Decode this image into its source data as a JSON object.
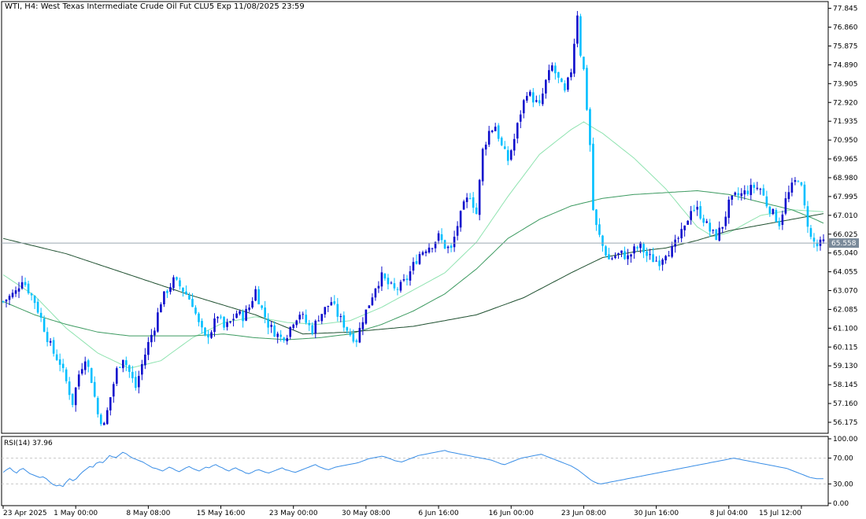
{
  "chart_data": {
    "type": "candlestick",
    "title": "WTI, H4:  West Texas Intermediate Crude Oil Fut CLU5 Exp 11/08/2025 23:59",
    "symbol": "WTI",
    "timeframe": "H4",
    "colors": {
      "bull": "#0d0dcc",
      "bear": "#00bfff",
      "ma_fast": "#8fe3b0",
      "ma_mid": "#3c9a60",
      "ma_slow": "#1f5030",
      "rsi_line": "#3a8ee6",
      "last_price_line": "#9aa6b0",
      "last_price_tag_bg": "#7a8a9a",
      "grid_levels": "#c8c8c8"
    },
    "price_axis": {
      "ylim": [
        55.6,
        78.2
      ],
      "ticks": [
        "77.845",
        "76.860",
        "75.875",
        "74.890",
        "73.905",
        "72.920",
        "71.935",
        "70.950",
        "69.965",
        "68.980",
        "67.995",
        "67.010",
        "66.025",
        "65.040",
        "64.055",
        "63.070",
        "62.085",
        "61.100",
        "60.115",
        "59.130",
        "58.145",
        "57.160",
        "56.175"
      ]
    },
    "last_price": "65.558",
    "time_axis": {
      "labels": [
        "23 Apr 2025",
        "1 May 00:00",
        "8 May 08:00",
        "15 May 16:00",
        "23 May 00:00",
        "30 May 08:00",
        "6 Jun 16:00",
        "16 Jun 00:00",
        "23 Jun 08:00",
        "30 Jun 16:00",
        "8 Jul 04:00",
        "15 Jul 12:00"
      ],
      "label_bar_index": [
        0,
        23,
        46,
        69,
        92,
        115,
        138,
        161,
        184,
        207,
        230,
        253
      ]
    },
    "anchors": [
      [
        0,
        62.5
      ],
      [
        4,
        63.0
      ],
      [
        6,
        63.7
      ],
      [
        8,
        63.1
      ],
      [
        10,
        62.5
      ],
      [
        12,
        61.6
      ],
      [
        14,
        60.6
      ],
      [
        16,
        59.8
      ],
      [
        18,
        59.3
      ],
      [
        20,
        58.3
      ],
      [
        22,
        57.2
      ],
      [
        24,
        58.7
      ],
      [
        26,
        59.6
      ],
      [
        28,
        58.4
      ],
      [
        30,
        56.6
      ],
      [
        32,
        56.0
      ],
      [
        34,
        57.5
      ],
      [
        36,
        58.9
      ],
      [
        38,
        59.6
      ],
      [
        40,
        58.8
      ],
      [
        42,
        58.0
      ],
      [
        44,
        59.2
      ],
      [
        46,
        60.3
      ],
      [
        48,
        61.2
      ],
      [
        50,
        62.5
      ],
      [
        52,
        63.1
      ],
      [
        54,
        63.6
      ],
      [
        56,
        63.3
      ],
      [
        58,
        62.9
      ],
      [
        60,
        62.4
      ],
      [
        62,
        61.3
      ],
      [
        64,
        60.6
      ],
      [
        66,
        61.0
      ],
      [
        68,
        61.8
      ],
      [
        70,
        61.1
      ],
      [
        72,
        61.4
      ],
      [
        74,
        61.9
      ],
      [
        76,
        61.7
      ],
      [
        78,
        62.2
      ],
      [
        80,
        63.1
      ],
      [
        82,
        62.1
      ],
      [
        84,
        61.3
      ],
      [
        86,
        60.9
      ],
      [
        88,
        60.6
      ],
      [
        90,
        60.8
      ],
      [
        92,
        61.5
      ],
      [
        94,
        61.9
      ],
      [
        96,
        61.4
      ],
      [
        98,
        61.0
      ],
      [
        100,
        61.7
      ],
      [
        102,
        62.1
      ],
      [
        104,
        62.5
      ],
      [
        106,
        61.8
      ],
      [
        108,
        61.3
      ],
      [
        110,
        60.8
      ],
      [
        112,
        60.5
      ],
      [
        114,
        61.6
      ],
      [
        116,
        62.4
      ],
      [
        118,
        63.3
      ],
      [
        120,
        63.8
      ],
      [
        122,
        63.4
      ],
      [
        124,
        63.1
      ],
      [
        126,
        63.3
      ],
      [
        128,
        63.7
      ],
      [
        130,
        64.4
      ],
      [
        132,
        65.0
      ],
      [
        134,
        65.3
      ],
      [
        136,
        65.5
      ],
      [
        138,
        65.9
      ],
      [
        140,
        65.4
      ],
      [
        142,
        65.2
      ],
      [
        144,
        66.5
      ],
      [
        146,
        67.5
      ],
      [
        148,
        68.1
      ],
      [
        150,
        67.1
      ],
      [
        152,
        70.4
      ],
      [
        154,
        71.4
      ],
      [
        156,
        71.7
      ],
      [
        158,
        70.6
      ],
      [
        160,
        69.9
      ],
      [
        162,
        71.0
      ],
      [
        164,
        72.4
      ],
      [
        166,
        73.5
      ],
      [
        168,
        73.1
      ],
      [
        170,
        72.7
      ],
      [
        172,
        74.0
      ],
      [
        174,
        74.8
      ],
      [
        176,
        74.1
      ],
      [
        178,
        73.4
      ],
      [
        180,
        74.6
      ],
      [
        182,
        77.6
      ],
      [
        183,
        75.5
      ],
      [
        184,
        74.6
      ],
      [
        186,
        70.7
      ],
      [
        187,
        67.3
      ],
      [
        188,
        66.4
      ],
      [
        190,
        65.4
      ],
      [
        192,
        64.7
      ],
      [
        194,
        64.9
      ],
      [
        196,
        65.0
      ],
      [
        198,
        64.8
      ],
      [
        200,
        65.2
      ],
      [
        202,
        65.4
      ],
      [
        204,
        64.9
      ],
      [
        206,
        64.7
      ],
      [
        208,
        64.6
      ],
      [
        210,
        65.1
      ],
      [
        212,
        65.2
      ],
      [
        214,
        65.8
      ],
      [
        216,
        66.3
      ],
      [
        218,
        67.4
      ],
      [
        220,
        67.3
      ],
      [
        222,
        66.8
      ],
      [
        224,
        66.2
      ],
      [
        226,
        65.9
      ],
      [
        228,
        66.5
      ],
      [
        230,
        67.6
      ],
      [
        232,
        68.0
      ],
      [
        234,
        68.1
      ],
      [
        236,
        68.3
      ],
      [
        238,
        68.5
      ],
      [
        240,
        68.4
      ],
      [
        242,
        67.6
      ],
      [
        244,
        67.1
      ],
      [
        246,
        66.6
      ],
      [
        248,
        67.8
      ],
      [
        250,
        68.5
      ],
      [
        252,
        69.0
      ],
      [
        253,
        68.4
      ],
      [
        254,
        67.4
      ],
      [
        255,
        66.6
      ],
      [
        256,
        65.8
      ],
      [
        258,
        65.4
      ],
      [
        260,
        65.6
      ]
    ],
    "moving_averages": [
      {
        "points": [
          [
            0,
            63.9
          ],
          [
            10,
            62.8
          ],
          [
            20,
            61.1
          ],
          [
            30,
            59.8
          ],
          [
            40,
            59.0
          ],
          [
            50,
            59.4
          ],
          [
            60,
            60.6
          ],
          [
            70,
            61.4
          ],
          [
            80,
            61.7
          ],
          [
            90,
            61.4
          ],
          [
            100,
            61.3
          ],
          [
            110,
            61.5
          ],
          [
            120,
            62.2
          ],
          [
            130,
            63.1
          ],
          [
            140,
            64.0
          ],
          [
            150,
            65.6
          ],
          [
            160,
            68.0
          ],
          [
            170,
            70.2
          ],
          [
            180,
            71.5
          ],
          [
            184,
            71.9
          ],
          [
            190,
            71.3
          ],
          [
            200,
            70.0
          ],
          [
            210,
            68.4
          ],
          [
            215,
            67.4
          ],
          [
            220,
            66.4
          ],
          [
            225,
            65.9
          ],
          [
            230,
            66.1
          ],
          [
            240,
            67.0
          ],
          [
            250,
            67.3
          ],
          [
            260,
            67.2
          ]
        ]
      },
      {
        "points": [
          [
            0,
            62.5
          ],
          [
            10,
            61.8
          ],
          [
            20,
            61.3
          ],
          [
            30,
            60.9
          ],
          [
            40,
            60.7
          ],
          [
            50,
            60.7
          ],
          [
            60,
            60.7
          ],
          [
            70,
            60.8
          ],
          [
            80,
            60.6
          ],
          [
            90,
            60.5
          ],
          [
            100,
            60.6
          ],
          [
            110,
            60.8
          ],
          [
            120,
            61.3
          ],
          [
            130,
            62.0
          ],
          [
            140,
            62.9
          ],
          [
            150,
            64.2
          ],
          [
            160,
            65.8
          ],
          [
            170,
            66.8
          ],
          [
            180,
            67.5
          ],
          [
            190,
            67.9
          ],
          [
            200,
            68.1
          ],
          [
            210,
            68.2
          ],
          [
            220,
            68.3
          ],
          [
            230,
            68.1
          ],
          [
            240,
            67.7
          ],
          [
            250,
            67.3
          ],
          [
            256,
            66.9
          ],
          [
            260,
            66.6
          ]
        ]
      },
      {
        "points": [
          [
            0,
            65.8
          ],
          [
            20,
            65.0
          ],
          [
            40,
            63.9
          ],
          [
            60,
            62.8
          ],
          [
            80,
            61.8
          ],
          [
            95,
            60.8
          ],
          [
            110,
            60.9
          ],
          [
            130,
            61.2
          ],
          [
            150,
            61.8
          ],
          [
            165,
            62.7
          ],
          [
            180,
            64.0
          ],
          [
            190,
            64.8
          ],
          [
            200,
            65.1
          ],
          [
            210,
            65.3
          ],
          [
            220,
            65.7
          ],
          [
            230,
            66.2
          ],
          [
            240,
            66.5
          ],
          [
            250,
            66.8
          ],
          [
            260,
            67.1
          ]
        ]
      }
    ],
    "rsi": {
      "label": "RSI(14) 37.96",
      "value": 37.96,
      "ylim": [
        0,
        100
      ],
      "ticks": [
        "100.00",
        "70.00",
        "30.00",
        "0.00"
      ],
      "levels": [
        70,
        30
      ],
      "values": [
        48,
        52,
        55,
        50,
        47,
        52,
        54,
        50,
        46,
        44,
        42,
        40,
        41,
        38,
        33,
        29,
        27,
        28,
        26,
        33,
        38,
        35,
        38,
        44,
        49,
        53,
        57,
        56,
        62,
        64,
        63,
        68,
        74,
        72,
        71,
        75,
        79,
        77,
        73,
        70,
        68,
        66,
        64,
        61,
        58,
        55,
        54,
        52,
        50,
        53,
        56,
        54,
        51,
        49,
        52,
        55,
        57,
        54,
        52,
        50,
        53,
        56,
        55,
        58,
        60,
        57,
        55,
        52,
        50,
        53,
        55,
        52,
        50,
        47,
        46,
        48,
        51,
        52,
        50,
        48,
        47,
        49,
        51,
        53,
        55,
        52,
        51,
        49,
        48,
        50,
        52,
        54,
        56,
        58,
        60,
        57,
        55,
        53,
        52,
        54,
        56,
        57,
        58,
        59,
        60,
        61,
        62,
        63,
        65,
        67,
        69,
        70,
        71,
        72,
        73,
        72,
        70,
        68,
        66,
        65,
        64,
        66,
        68,
        70,
        72,
        74,
        75,
        76,
        77,
        78,
        79,
        80,
        81,
        82,
        80,
        79,
        78,
        77,
        76,
        75,
        74,
        73,
        72,
        71,
        70,
        69,
        68,
        67,
        65,
        63,
        61,
        60,
        62,
        64,
        66,
        68,
        70,
        71,
        72,
        73,
        74,
        75,
        76,
        74,
        72,
        70,
        68,
        66,
        64,
        62,
        60,
        58,
        55,
        52,
        48,
        44,
        40,
        36,
        33,
        31,
        30,
        31,
        32,
        33,
        34,
        35,
        36,
        37,
        38,
        39,
        40,
        41,
        42,
        43,
        44,
        45,
        46,
        47,
        48,
        49,
        50,
        51,
        52,
        53,
        54,
        55,
        56,
        57,
        58,
        59,
        60,
        61,
        62,
        63,
        64,
        65,
        66,
        67,
        68,
        69,
        70,
        69,
        68,
        67,
        66,
        65,
        64,
        63,
        62,
        61,
        60,
        59,
        58,
        57,
        56,
        55,
        54,
        52,
        50,
        48,
        46,
        44,
        42,
        40,
        39,
        38,
        38,
        38
      ]
    }
  }
}
